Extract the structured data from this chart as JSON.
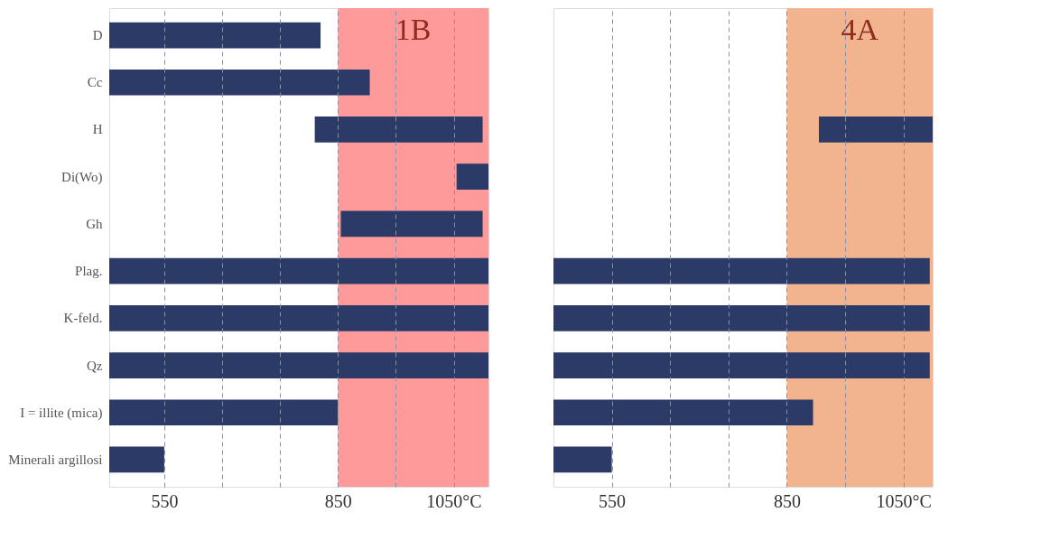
{
  "chart_data": [
    {
      "type": "bar",
      "orientation": "horizontal",
      "categories": [
        "D",
        "Cc",
        "H",
        "Di(Wo)",
        "Gh",
        "Plag.",
        "K-feld.",
        "Qz",
        "I = illite (mica)",
        "Minerali argillosi"
      ],
      "base": [
        455,
        455,
        810,
        1055,
        855,
        455,
        455,
        455,
        455,
        455
      ],
      "values": [
        365,
        450,
        290,
        55,
        245,
        655,
        655,
        655,
        395,
        95
      ],
      "color": "#2b3a67",
      "xlim": [
        455,
        1110
      ],
      "xticks": [
        550,
        {
          "value": 650,
          "label": null
        },
        {
          "value": 750,
          "label": null
        },
        850,
        {
          "value": 950,
          "label": null
        },
        {
          "value": 1050,
          "label": "1050°C"
        }
      ],
      "grid": "x",
      "bands": [
        {
          "axis": "x",
          "from": 850,
          "to": 1110,
          "label": "1B",
          "color": "#ff9a9a"
        }
      ]
    },
    {
      "type": "bar",
      "orientation": "horizontal",
      "categories": [
        null,
        null,
        null,
        null,
        null,
        null,
        null,
        null,
        null,
        null
      ],
      "base": [
        null,
        null,
        905,
        null,
        null,
        450,
        450,
        450,
        450,
        450
      ],
      "values": [
        null,
        null,
        195,
        null,
        null,
        645,
        645,
        645,
        445,
        100
      ],
      "color": "#2b3a67",
      "xlim": [
        450,
        1100
      ],
      "xticks": [
        550,
        {
          "value": 650,
          "label": null
        },
        {
          "value": 750,
          "label": null
        },
        850,
        {
          "value": 950,
          "label": null
        },
        {
          "value": 1050,
          "label": "1050°C"
        }
      ],
      "grid": "x",
      "tick_labels": "x",
      "bands": [
        {
          "axis": "x",
          "from": 850,
          "to": 1100,
          "label": "4A",
          "color": "#f2b48f"
        }
      ]
    }
  ]
}
